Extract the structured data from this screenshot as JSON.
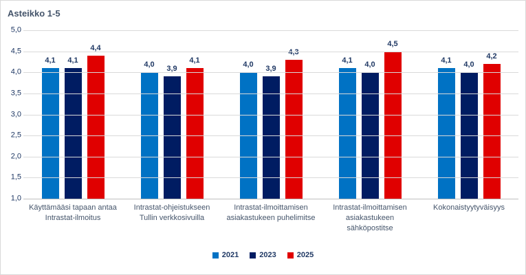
{
  "window": {
    "background_color": "#FFFFFF",
    "border_color": "#D9D9D9"
  },
  "chart_data": {
    "type": "bar",
    "title": "Asteikko 1-5",
    "categories": [
      "Käyttämääsi tapaan antaa Intrastat-ilmoitus",
      "Intrastat-ohjeistukseen Tullin verkkosivuilla",
      "Intrastat-ilmoittamisen asiakastukeen puhelimitse",
      "Intrastat-ilmoittamisen asiakastukeen sähköpostitse",
      "Kokonaistyytyväisyys"
    ],
    "series": [
      {
        "name": "2021",
        "color": "#0072C4",
        "values": [
          4.1,
          4.0,
          4.0,
          4.1,
          4.1
        ],
        "labels": [
          "4,1",
          "4,0",
          "4,0",
          "4,1",
          "4,1"
        ]
      },
      {
        "name": "2023",
        "color": "#001C62",
        "values": [
          4.1,
          3.9,
          3.9,
          4.0,
          4.0
        ],
        "labels": [
          "4,1",
          "3,9",
          "3,9",
          "4,0",
          "4,0"
        ]
      },
      {
        "name": "2025",
        "color": "#E00000",
        "values": [
          4.4,
          4.1,
          4.3,
          4.5,
          4.2
        ],
        "labels": [
          "4,4",
          "4,1",
          "4,3",
          "4,5",
          "4,2"
        ]
      }
    ],
    "ylim": [
      1.0,
      5.0
    ],
    "yticks": [
      {
        "value": 5.0,
        "label": "5,0"
      },
      {
        "value": 4.5,
        "label": "4,5"
      },
      {
        "value": 4.0,
        "label": "4,0"
      },
      {
        "value": 3.5,
        "label": "3,5"
      },
      {
        "value": 3.0,
        "label": "3,0"
      },
      {
        "value": 2.5,
        "label": "2,5"
      },
      {
        "value": 2.0,
        "label": "2,0"
      },
      {
        "value": 1.5,
        "label": "1,5"
      },
      {
        "value": 1.0,
        "label": "1,0"
      }
    ],
    "grid": true,
    "gridline_color": "#D9D9D9",
    "baseline_color": "#BFBFBF",
    "text_color": "#1F3864",
    "title_color": "#44546A",
    "legend_position": "bottom"
  }
}
